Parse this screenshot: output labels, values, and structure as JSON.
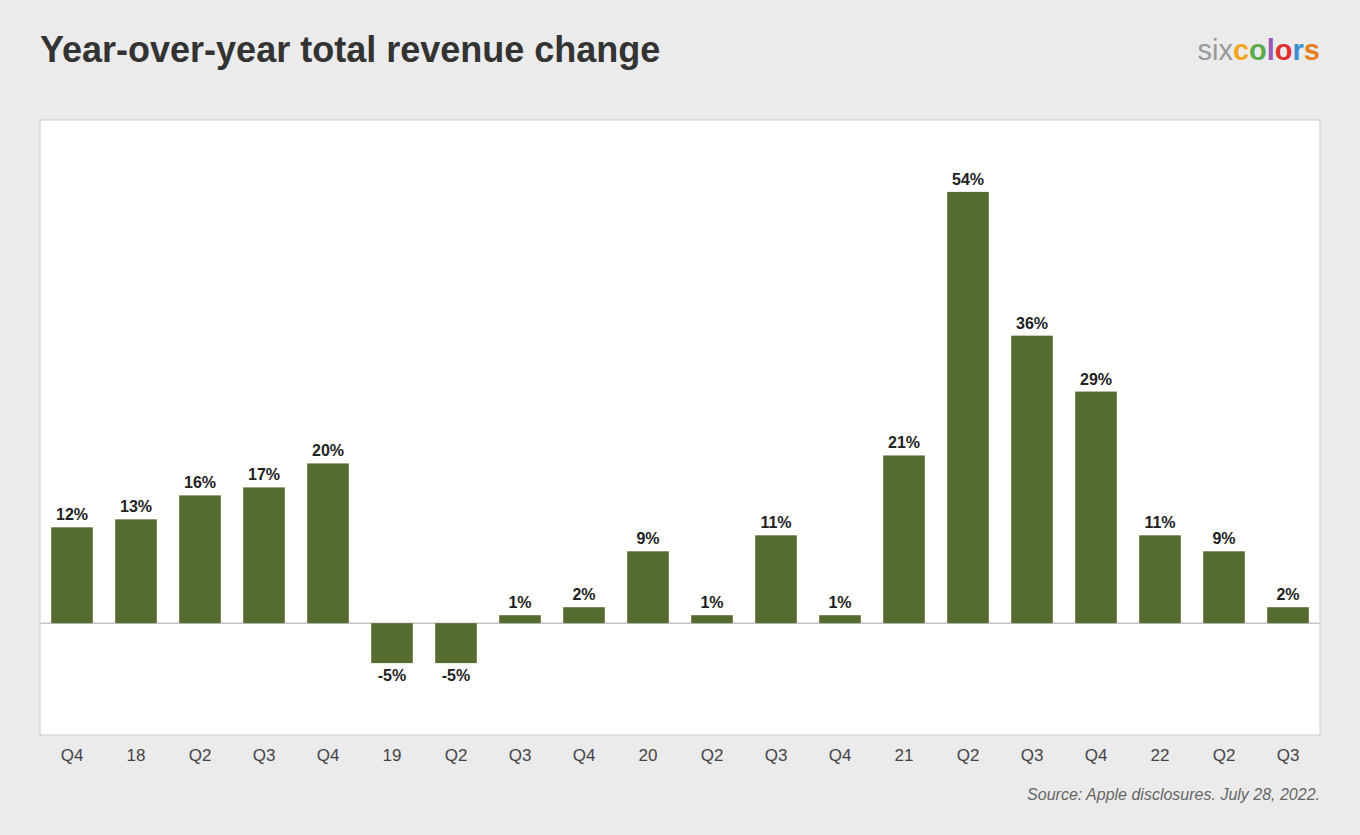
{
  "chart_data": {
    "type": "bar",
    "title": "Year-over-year total revenue change",
    "categories": [
      "Q4",
      "18",
      "Q2",
      "Q3",
      "Q4",
      "19",
      "Q2",
      "Q3",
      "Q4",
      "20",
      "Q2",
      "Q3",
      "Q4",
      "21",
      "Q2",
      "Q3",
      "Q4",
      "22",
      "Q2",
      "Q3"
    ],
    "values": [
      12,
      13,
      16,
      17,
      20,
      -5,
      -5,
      1,
      2,
      9,
      1,
      11,
      1,
      21,
      54,
      36,
      29,
      11,
      9,
      2
    ],
    "value_labels": [
      "12%",
      "13%",
      "16%",
      "17%",
      "20%",
      "-5%",
      "-5%",
      "1%",
      "2%",
      "9%",
      "1%",
      "11%",
      "1%",
      "21%",
      "54%",
      "36%",
      "29%",
      "11%",
      "9%",
      "2%"
    ],
    "data_labels": true,
    "color": "#556b2f",
    "ylim": [
      -14,
      63
    ],
    "tick_labels": "x",
    "grid": false,
    "annotations": [
      {
        "text": "six",
        "color": "#999999"
      },
      {
        "text": "c",
        "color": "#f5a623"
      },
      {
        "text": "o",
        "color": "#5aab4a"
      },
      {
        "text": "l",
        "color": "#9b59b6"
      },
      {
        "text": "o",
        "color": "#e03030"
      },
      {
        "text": "r",
        "color": "#3a8fd1"
      },
      {
        "text": "s",
        "color": "#e67e22"
      },
      {
        "text": "Source: Apple disclosures. July 28, 2022.",
        "color": "#666666"
      }
    ]
  }
}
